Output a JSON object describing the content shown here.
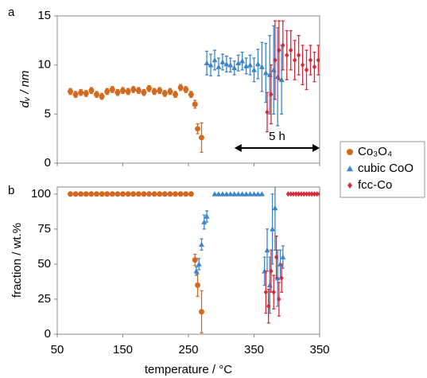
{
  "chart_data": [
    {
      "type": "scatter",
      "panel": "a",
      "ylabel": "dᵥ / nm",
      "annotation": "5 h",
      "xlim": [
        0,
        100
      ],
      "xticks": [
        0,
        25,
        50,
        75,
        100
      ],
      "ylim": [
        0,
        15
      ],
      "yticks": [
        0,
        5,
        10,
        15
      ],
      "series": [
        {
          "color": "#d2691e",
          "marker": "circle",
          "x": [
            5,
            7,
            9,
            11,
            13,
            15,
            17,
            19,
            21,
            23,
            25,
            27,
            29,
            31,
            33,
            35,
            37,
            39,
            41,
            43,
            45,
            47,
            49,
            51,
            52.5,
            53.5,
            55
          ],
          "values": [
            7.3,
            7.0,
            7.2,
            7.1,
            7.4,
            7.0,
            6.8,
            7.3,
            7.5,
            7.2,
            7.4,
            7.3,
            7.5,
            7.4,
            7.2,
            7.6,
            7.3,
            7.4,
            7.1,
            7.3,
            7.0,
            7.7,
            7.5,
            7.0,
            6.0,
            3.5,
            2.6
          ],
          "errors": [
            0.3,
            0.3,
            0.3,
            0.3,
            0.3,
            0.3,
            0.3,
            0.3,
            0.3,
            0.3,
            0.3,
            0.3,
            0.3,
            0.3,
            0.3,
            0.3,
            0.3,
            0.3,
            0.3,
            0.3,
            0.3,
            0.3,
            0.3,
            0.3,
            0.4,
            0.5,
            1.5
          ]
        },
        {
          "color": "#3b86c8",
          "marker": "triangle",
          "x": [
            57,
            58.5,
            60,
            61.5,
            63,
            64.5,
            66,
            67.5,
            69,
            70.5,
            72,
            73.5,
            75,
            76.5,
            78,
            79.5,
            81,
            82.5,
            84,
            85.5
          ],
          "values": [
            10.2,
            10.0,
            10.5,
            9.8,
            10.3,
            10.1,
            10.0,
            9.7,
            10.2,
            10.4,
            9.9,
            10.0,
            9.5,
            10.1,
            9.8,
            9.2,
            9.0,
            9.5,
            8.8,
            8.5
          ],
          "errors": [
            1.2,
            1.1,
            1.0,
            0.9,
            0.8,
            0.8,
            0.7,
            0.7,
            0.8,
            0.9,
            0.8,
            1.0,
            1.2,
            1.5,
            2.5,
            3,
            4,
            4.5,
            5,
            3.5
          ]
        },
        {
          "color": "#d42a3a",
          "marker": "diamond",
          "x": [
            80,
            81.5,
            83,
            84.5,
            86,
            87.5,
            89,
            90.5,
            92,
            93.5,
            95,
            96.5,
            98,
            99.5
          ],
          "values": [
            5.2,
            7.0,
            10.5,
            11.5,
            12.0,
            11.0,
            11.5,
            10.5,
            11.0,
            10.0,
            9.5,
            10.5,
            9.8,
            10.5
          ],
          "errors": [
            2,
            3,
            4,
            3,
            2.5,
            2.5,
            2,
            2,
            2,
            2,
            2,
            1.5,
            1.5,
            1.5
          ]
        }
      ]
    },
    {
      "type": "scatter",
      "panel": "b",
      "ylabel": "fraction / wt.%",
      "xlabel": "temperature / °C",
      "xlim": [
        0,
        100
      ],
      "xticks": [
        {
          "value": 0,
          "label": "50"
        },
        {
          "value": 25,
          "label": "150"
        },
        {
          "value": 50,
          "label": "250"
        },
        {
          "value": 75,
          "label": "350"
        },
        {
          "value": 100,
          "label": "350"
        }
      ],
      "ylim": [
        0,
        105
      ],
      "yticks": [
        0,
        25,
        50,
        75,
        100
      ],
      "series": [
        {
          "name": "Co₃O₄",
          "color": "#d2691e",
          "marker": "circle",
          "x": [
            5,
            7,
            9,
            11,
            13,
            15,
            17,
            19,
            21,
            23,
            25,
            27,
            29,
            31,
            33,
            35,
            37,
            39,
            41,
            43,
            45,
            47,
            49,
            51,
            52.5,
            53.5,
            55
          ],
          "values": [
            100,
            100,
            100,
            100,
            100,
            100,
            100,
            100,
            100,
            100,
            100,
            100,
            100,
            100,
            100,
            100,
            100,
            100,
            100,
            100,
            100,
            100,
            100,
            100,
            53,
            35,
            16
          ],
          "errors": [
            0,
            0,
            0,
            0,
            0,
            0,
            0,
            0,
            0,
            0,
            0,
            0,
            0,
            0,
            0,
            0,
            0,
            0,
            0,
            0,
            0,
            0,
            0,
            0,
            4,
            8,
            15
          ]
        },
        {
          "name": "cubic CoO",
          "color": "#3b86c8",
          "marker": "triangle",
          "x": [
            53,
            54,
            55,
            56,
            57,
            60,
            61.5,
            63,
            64.5,
            66,
            67.5,
            69,
            70.5,
            72,
            73.5,
            75,
            76.5,
            78,
            79,
            80,
            81,
            82,
            83,
            84,
            85,
            86
          ],
          "values": [
            45,
            50,
            64,
            80,
            84,
            100,
            100,
            100,
            100,
            100,
            100,
            100,
            100,
            100,
            100,
            100,
            100,
            100,
            45,
            60,
            35,
            75,
            90,
            40,
            50,
            55
          ],
          "errors": [
            3,
            4,
            4,
            5,
            4,
            0,
            0,
            0,
            0,
            0,
            0,
            0,
            0,
            0,
            0,
            0,
            0,
            0,
            10,
            15,
            20,
            25,
            30,
            20,
            10,
            8
          ]
        },
        {
          "name": "fcc-Co",
          "color": "#d42a3a",
          "marker": "diamond",
          "x": [
            79.5,
            80.5,
            81.5,
            82.5,
            83.5,
            84.5,
            85.5,
            88,
            89,
            90,
            91,
            92,
            93,
            94,
            95,
            96,
            97,
            98,
            99,
            100
          ],
          "values": [
            30,
            20,
            45,
            30,
            55,
            25,
            40,
            100,
            100,
            100,
            100,
            100,
            100,
            100,
            100,
            100,
            100,
            100,
            100,
            100
          ],
          "errors": [
            15,
            12,
            15,
            12,
            15,
            12,
            10,
            0,
            0,
            0,
            0,
            0,
            0,
            0,
            0,
            0,
            0,
            0,
            0,
            0
          ]
        }
      ]
    }
  ]
}
